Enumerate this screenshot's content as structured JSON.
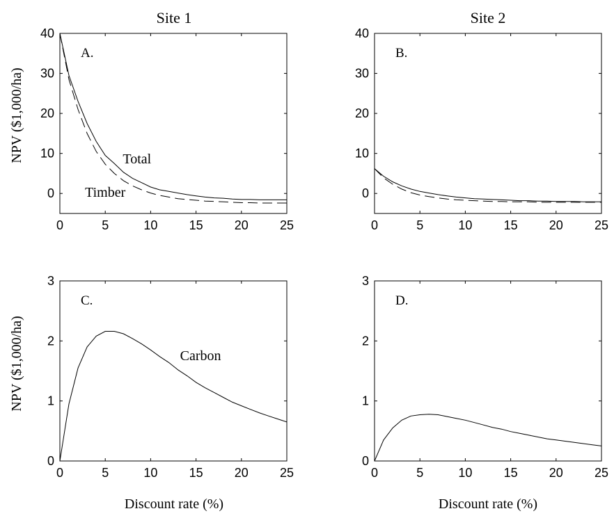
{
  "figure": {
    "col_titles": [
      "Site 1",
      "Site 2"
    ],
    "ylabel": "NPV ($1,000/ha)",
    "xlabel": "Discount rate (%)"
  },
  "chart_data": [
    {
      "type": "line",
      "panel_label": "A.",
      "xlim": [
        0,
        25
      ],
      "ylim": [
        -5,
        40
      ],
      "xticks": [
        0,
        5,
        10,
        15,
        20,
        25
      ],
      "yticks": [
        0,
        10,
        20,
        30,
        40
      ],
      "annotations": [
        {
          "text": "Total",
          "x": 8.5,
          "y": 7.5
        },
        {
          "text": "Timber",
          "x": 5,
          "y": -0.8
        }
      ],
      "series": [
        {
          "style": "solid",
          "x": [
            0,
            1,
            2,
            3,
            4,
            5,
            6,
            7,
            8,
            9,
            10,
            11,
            12,
            13,
            14,
            15,
            16,
            17,
            18,
            19,
            20,
            21,
            22,
            23,
            24,
            25
          ],
          "y": [
            40,
            29.5,
            23,
            17.5,
            13,
            9.5,
            7.5,
            5.3,
            3.8,
            2.7,
            1.6,
            0.9,
            0.5,
            0.1,
            -0.3,
            -0.6,
            -0.9,
            -1.1,
            -1.2,
            -1.4,
            -1.5,
            -1.5,
            -1.6,
            -1.6,
            -1.6,
            -1.6
          ]
        },
        {
          "style": "dashed",
          "x": [
            0,
            1,
            2,
            3,
            4,
            5,
            6,
            7,
            8,
            9,
            10,
            11,
            12,
            13,
            14,
            15,
            16,
            17,
            18,
            19,
            20,
            21,
            22,
            23,
            24,
            25
          ],
          "y": [
            40,
            28.5,
            21,
            15,
            10.5,
            7.3,
            5,
            3.2,
            1.9,
            0.9,
            0.1,
            -0.5,
            -0.9,
            -1.3,
            -1.5,
            -1.7,
            -1.9,
            -2.0,
            -2.1,
            -2.2,
            -2.3,
            -2.3,
            -2.4,
            -2.4,
            -2.4,
            -2.4
          ]
        }
      ]
    },
    {
      "type": "line",
      "panel_label": "B.",
      "xlim": [
        0,
        25
      ],
      "ylim": [
        -5,
        40
      ],
      "xticks": [
        0,
        5,
        10,
        15,
        20,
        25
      ],
      "yticks": [
        0,
        10,
        20,
        30,
        40
      ],
      "annotations": [],
      "series": [
        {
          "style": "solid",
          "x": [
            0,
            1,
            2,
            3,
            4,
            5,
            6,
            7,
            8,
            9,
            10,
            11,
            12,
            13,
            14,
            15,
            16,
            17,
            18,
            19,
            20,
            21,
            22,
            23,
            24,
            25
          ],
          "y": [
            6.2,
            4.3,
            2.9,
            1.9,
            1.1,
            0.5,
            0.1,
            -0.3,
            -0.6,
            -0.9,
            -1.1,
            -1.3,
            -1.4,
            -1.5,
            -1.6,
            -1.7,
            -1.8,
            -1.8,
            -1.9,
            -1.9,
            -2.0,
            -2.0,
            -2.0,
            -2.1,
            -2.1,
            -2.1
          ]
        },
        {
          "style": "dashed",
          "x": [
            0,
            1,
            2,
            3,
            4,
            5,
            6,
            7,
            8,
            9,
            10,
            11,
            12,
            13,
            14,
            15,
            16,
            17,
            18,
            19,
            20,
            21,
            22,
            23,
            24,
            25
          ],
          "y": [
            6.2,
            3.9,
            2.3,
            1.1,
            0.2,
            -0.4,
            -0.8,
            -1.1,
            -1.4,
            -1.6,
            -1.7,
            -1.8,
            -1.9,
            -2.0,
            -2.0,
            -2.1,
            -2.1,
            -2.1,
            -2.2,
            -2.2,
            -2.2,
            -2.2,
            -2.2,
            -2.2,
            -2.2,
            -2.2
          ]
        }
      ]
    },
    {
      "type": "line",
      "panel_label": "C.",
      "xlim": [
        0,
        25
      ],
      "ylim": [
        0,
        3
      ],
      "xticks": [
        0,
        5,
        10,
        15,
        20,
        25
      ],
      "yticks": [
        0,
        1,
        2,
        3
      ],
      "annotations": [
        {
          "text": "Carbon",
          "x": 15.5,
          "y": 1.68
        }
      ],
      "series": [
        {
          "style": "solid",
          "x": [
            0,
            1,
            2,
            3,
            4,
            5,
            6,
            7,
            8,
            9,
            10,
            11,
            12,
            13,
            14,
            15,
            16,
            17,
            18,
            19,
            20,
            21,
            22,
            23,
            24,
            25
          ],
          "y": [
            0,
            0.95,
            1.55,
            1.9,
            2.08,
            2.16,
            2.16,
            2.12,
            2.04,
            1.95,
            1.85,
            1.74,
            1.64,
            1.52,
            1.42,
            1.31,
            1.22,
            1.14,
            1.06,
            0.98,
            0.92,
            0.86,
            0.8,
            0.75,
            0.7,
            0.65
          ]
        }
      ]
    },
    {
      "type": "line",
      "panel_label": "D.",
      "xlim": [
        0,
        25
      ],
      "ylim": [
        0,
        3
      ],
      "xticks": [
        0,
        5,
        10,
        15,
        20,
        25
      ],
      "yticks": [
        0,
        1,
        2,
        3
      ],
      "annotations": [],
      "series": [
        {
          "style": "solid",
          "x": [
            0,
            1,
            2,
            3,
            4,
            5,
            6,
            7,
            8,
            9,
            10,
            11,
            12,
            13,
            14,
            15,
            16,
            17,
            18,
            19,
            20,
            21,
            22,
            23,
            24,
            25
          ],
          "y": [
            0,
            0.35,
            0.55,
            0.68,
            0.75,
            0.77,
            0.78,
            0.77,
            0.74,
            0.71,
            0.68,
            0.64,
            0.6,
            0.56,
            0.53,
            0.49,
            0.46,
            0.43,
            0.4,
            0.37,
            0.35,
            0.33,
            0.31,
            0.29,
            0.27,
            0.25
          ]
        }
      ]
    }
  ]
}
